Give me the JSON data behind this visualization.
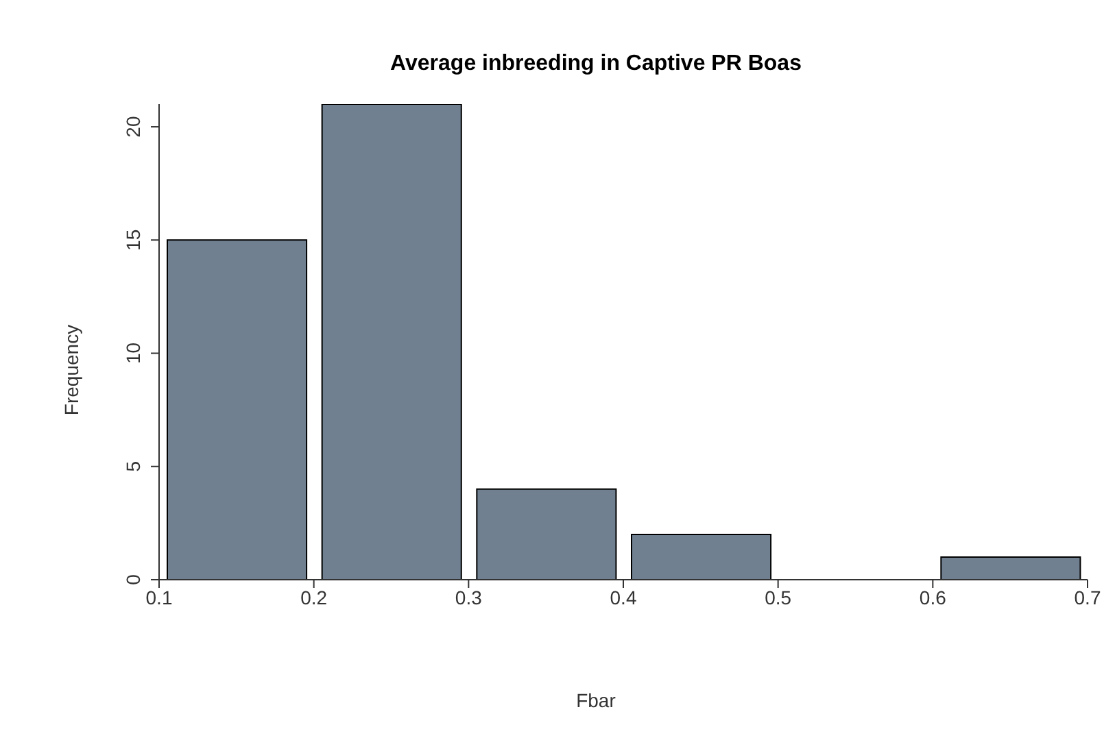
{
  "chart_data": {
    "type": "histogram",
    "title": "Average inbreeding in Captive PR Boas",
    "xlabel": "Fbar",
    "ylabel": "Frequency",
    "bins": [
      0.1,
      0.2,
      0.3,
      0.4,
      0.5,
      0.6,
      0.7
    ],
    "values": [
      15,
      21,
      4,
      2,
      0,
      1
    ],
    "color": "#708090",
    "xlim": [
      0.1,
      0.7
    ],
    "xticks": [
      0.1,
      0.2,
      0.3,
      0.4,
      0.5,
      0.6,
      0.7
    ],
    "ylim": [
      0,
      21
    ],
    "yticks": [
      0,
      5,
      10,
      15,
      20
    ],
    "grid": false,
    "legend": false
  }
}
